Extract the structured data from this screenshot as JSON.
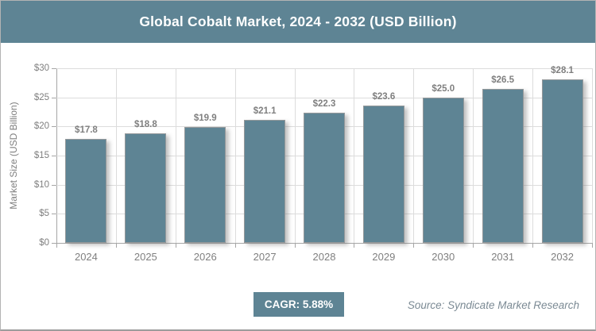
{
  "header": {
    "title": "Global Cobalt Market, 2024 - 2032 (USD Billion)"
  },
  "footer": {
    "cagr_label": "CAGR: 5.88%",
    "source": "Source: Syndicate Market Research"
  },
  "colors": {
    "accent": "#5e8494",
    "grid": "#dcdcdc",
    "axis": "#a6a6a6",
    "tick_label": "#7f7f7f",
    "value_label": "#7f7f7f",
    "source_text": "#7b8a94",
    "title_text": "#ffffff"
  },
  "chart_data": {
    "type": "bar",
    "title": "Global Cobalt Market, 2024 - 2032 (USD Billion)",
    "categories": [
      "2024",
      "2025",
      "2026",
      "2027",
      "2028",
      "2029",
      "2030",
      "2031",
      "2032"
    ],
    "values": [
      17.8,
      18.8,
      19.9,
      21.1,
      22.3,
      23.6,
      25.0,
      26.5,
      28.1
    ],
    "value_labels": [
      "$17.8",
      "$18.8",
      "$19.9",
      "$21.1",
      "$22.3",
      "$23.6",
      "$25.0",
      "$26.5",
      "$28.1"
    ],
    "xlabel": "",
    "ylabel": "Market Size (USD Billion)",
    "ylim": [
      0,
      30
    ],
    "ytick_step": 5,
    "ytick_labels": [
      "$0",
      "$5",
      "$10",
      "$15",
      "$20",
      "$25",
      "$30"
    ],
    "grid": true,
    "legend": false
  }
}
